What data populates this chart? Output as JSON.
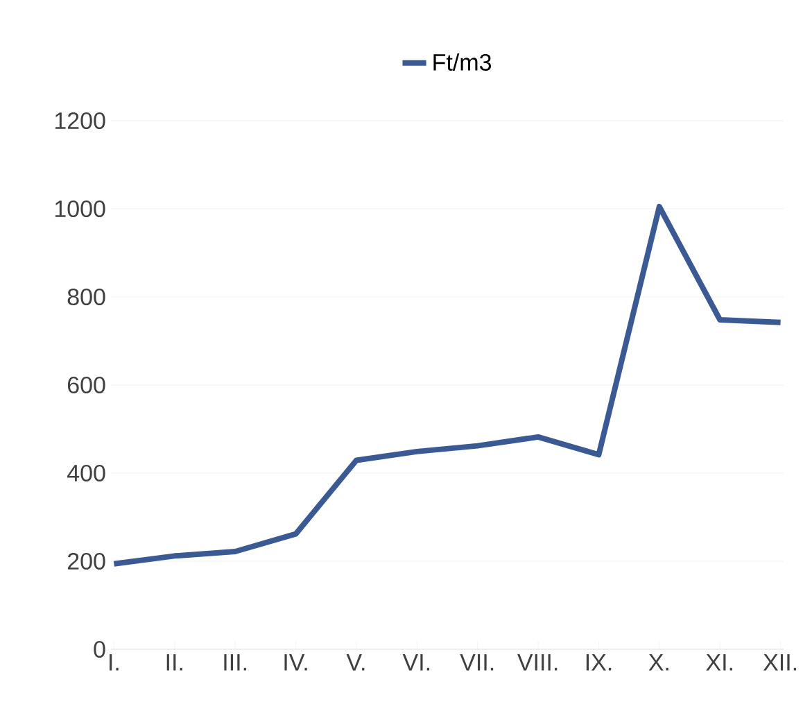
{
  "chart_data": {
    "type": "line",
    "categories": [
      "I.",
      "II.",
      "III.",
      "IV.",
      "V.",
      "VI.",
      "VII.",
      "VIII.",
      "IX.",
      "X.",
      "XI.",
      "XII."
    ],
    "series": [
      {
        "name": "Ft/m3",
        "color": "#3b5a94",
        "values": [
          194,
          212,
          222,
          262,
          429,
          449,
          462,
          482,
          442,
          1005,
          748,
          742
        ]
      }
    ],
    "ylim": [
      0,
      1200
    ],
    "yticks": [
      0,
      200,
      400,
      600,
      800,
      1000,
      1200
    ],
    "grid": "y",
    "legend": "top",
    "marker": "none",
    "line_style": "solid"
  }
}
